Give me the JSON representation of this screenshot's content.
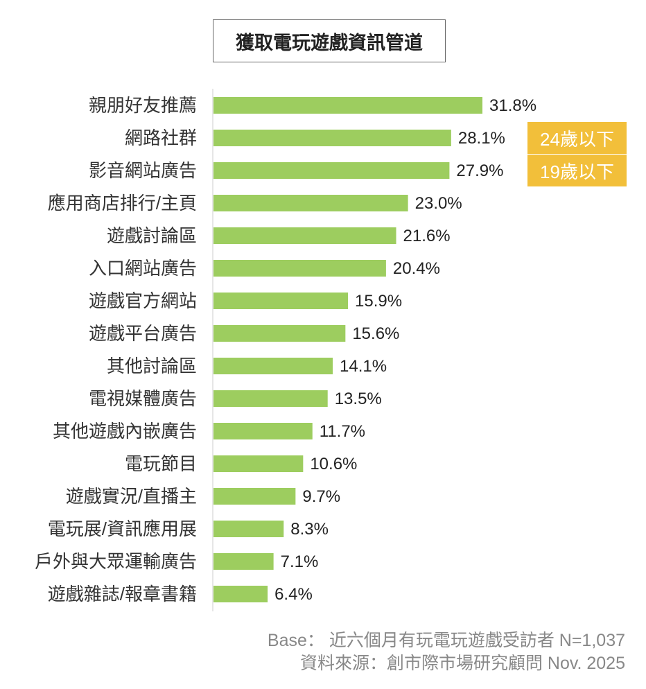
{
  "chart_data": {
    "type": "bar",
    "orientation": "horizontal",
    "title": "獲取電玩遊戲資訊管道",
    "categories": [
      "親朋好友推薦",
      "網路社群",
      "影音網站廣告",
      "應用商店排行/主頁",
      "遊戲討論區",
      "入口網站廣告",
      "遊戲官方網站",
      "遊戲平台廣告",
      "其他討論區",
      "電視媒體廣告",
      "其他遊戲內嵌廣告",
      "電玩節目",
      "遊戲實況/直播主",
      "電玩展/資訊應用展",
      "戶外與大眾運輸廣告",
      "遊戲雜誌/報章書籍"
    ],
    "values": [
      31.8,
      28.1,
      27.9,
      23.0,
      21.6,
      20.4,
      15.9,
      15.6,
      14.1,
      13.5,
      11.7,
      10.6,
      9.7,
      8.3,
      7.1,
      6.4
    ],
    "value_labels": [
      "31.8%",
      "28.1%",
      "27.9%",
      "23.0%",
      "21.6%",
      "20.4%",
      "15.9%",
      "15.6%",
      "14.1%",
      "13.5%",
      "11.7%",
      "10.6%",
      "9.7%",
      "8.3%",
      "7.1%",
      "6.4%"
    ],
    "xlim": [
      0,
      35
    ],
    "grid": false,
    "bar_color": "#9dcd5f",
    "annotations": [
      "24歲以下",
      "19歲以下"
    ],
    "annotation_color": "#f2bf3a"
  },
  "footer": {
    "base": "Base： 近六個月有玩電玩遊戲受訪者 N=1,037",
    "source": "資料來源：創市際市場研究顧問 Nov. 2025"
  }
}
